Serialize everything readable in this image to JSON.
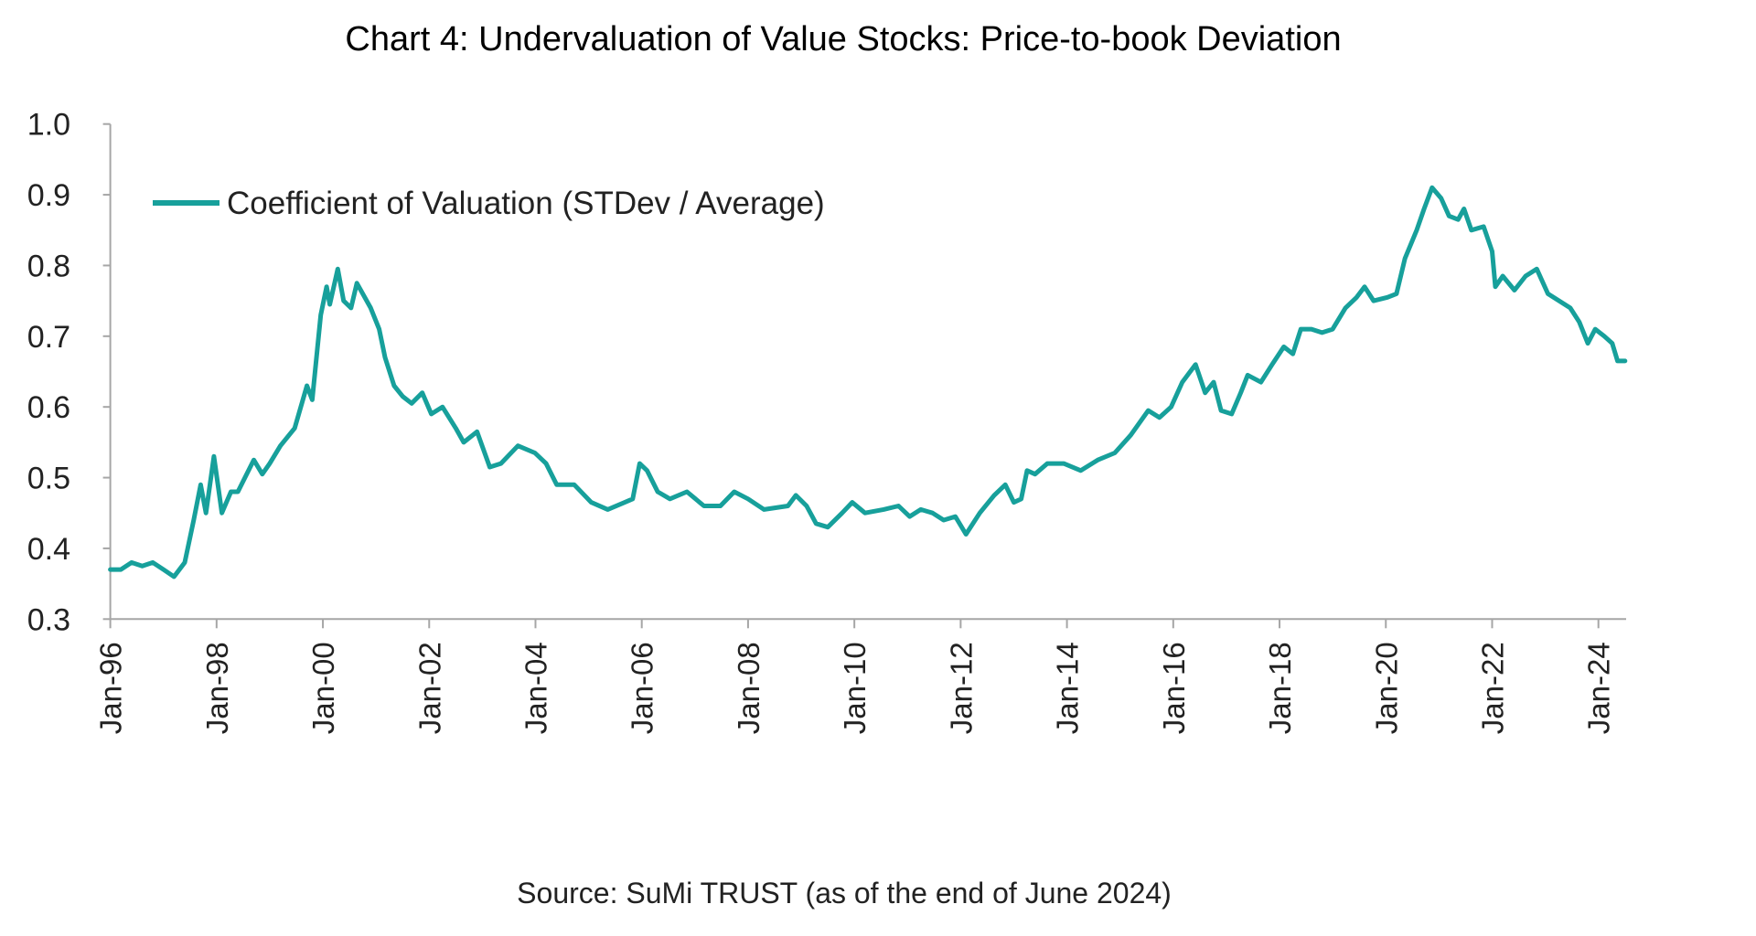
{
  "chart_data": {
    "type": "line",
    "title": "Chart 4: Undervaluation of Value Stocks: Price-to-book Deviation",
    "source": "Source: SuMi TRUST (as of the end of June 2024)",
    "xlabel": "",
    "ylabel": "",
    "ylim": [
      0.3,
      1.0
    ],
    "xlim": [
      1996.0,
      2024.5
    ],
    "y_ticks": [
      "0.3",
      "0.4",
      "0.5",
      "0.6",
      "0.7",
      "0.8",
      "0.9",
      "1.0"
    ],
    "x_ticks": [
      "Jan-96",
      "Jan-98",
      "Jan-00",
      "Jan-02",
      "Jan-04",
      "Jan-06",
      "Jan-08",
      "Jan-10",
      "Jan-12",
      "Jan-14",
      "Jan-16",
      "Jan-18",
      "Jan-20",
      "Jan-22",
      "Jan-24"
    ],
    "grid": false,
    "legend_position": "top-left",
    "series": [
      {
        "name": "Coefficient of Valuation (STDev / Average)",
        "color": "#17a09b",
        "x": [
          1996.0,
          1996.2,
          1996.4,
          1996.6,
          1996.8,
          1997.0,
          1997.2,
          1997.4,
          1997.57,
          1997.7,
          1997.8,
          1997.95,
          1998.1,
          1998.27,
          1998.4,
          1998.7,
          1998.86,
          1999.0,
          1999.2,
          1999.47,
          1999.7,
          1999.8,
          1999.96,
          2000.07,
          2000.13,
          2000.28,
          2000.39,
          2000.53,
          2000.64,
          2000.9,
          2001.06,
          2001.17,
          2001.34,
          2001.5,
          2001.67,
          2001.87,
          2002.04,
          2002.25,
          2002.5,
          2002.65,
          2002.9,
          2003.14,
          2003.35,
          2003.67,
          2003.99,
          2004.2,
          2004.4,
          2004.73,
          2005.05,
          2005.36,
          2005.68,
          2005.83,
          2005.96,
          2006.1,
          2006.3,
          2006.53,
          2006.85,
          2007.17,
          2007.48,
          2007.74,
          2008.0,
          2008.3,
          2008.75,
          2008.9,
          2009.1,
          2009.28,
          2009.5,
          2009.77,
          2009.96,
          2010.2,
          2010.55,
          2010.83,
          2011.04,
          2011.25,
          2011.47,
          2011.68,
          2011.9,
          2012.1,
          2012.36,
          2012.63,
          2012.84,
          2013.0,
          2013.14,
          2013.25,
          2013.4,
          2013.63,
          2013.94,
          2014.26,
          2014.58,
          2014.9,
          2015.2,
          2015.53,
          2015.74,
          2015.96,
          2016.17,
          2016.42,
          2016.6,
          2016.76,
          2016.9,
          2017.1,
          2017.27,
          2017.4,
          2017.65,
          2017.86,
          2018.08,
          2018.25,
          2018.4,
          2018.6,
          2018.8,
          2019.0,
          2019.24,
          2019.45,
          2019.6,
          2019.77,
          2020.03,
          2020.2,
          2020.36,
          2020.58,
          2020.72,
          2020.87,
          2021.04,
          2021.19,
          2021.36,
          2021.47,
          2021.61,
          2021.84,
          2022.0,
          2022.06,
          2022.2,
          2022.42,
          2022.63,
          2022.84,
          2023.05,
          2023.26,
          2023.47,
          2023.64,
          2023.8,
          2023.94,
          2024.11,
          2024.26,
          2024.36,
          2024.5
        ],
        "values": [
          0.37,
          0.37,
          0.38,
          0.375,
          0.38,
          0.37,
          0.36,
          0.38,
          0.44,
          0.49,
          0.45,
          0.53,
          0.45,
          0.48,
          0.48,
          0.525,
          0.505,
          0.52,
          0.545,
          0.57,
          0.63,
          0.61,
          0.73,
          0.77,
          0.745,
          0.795,
          0.75,
          0.74,
          0.775,
          0.74,
          0.71,
          0.67,
          0.63,
          0.615,
          0.605,
          0.62,
          0.59,
          0.6,
          0.57,
          0.55,
          0.565,
          0.515,
          0.52,
          0.545,
          0.535,
          0.52,
          0.49,
          0.49,
          0.465,
          0.455,
          0.465,
          0.47,
          0.52,
          0.51,
          0.48,
          0.47,
          0.48,
          0.46,
          0.46,
          0.48,
          0.47,
          0.455,
          0.46,
          0.475,
          0.46,
          0.435,
          0.43,
          0.45,
          0.465,
          0.45,
          0.455,
          0.46,
          0.445,
          0.455,
          0.45,
          0.44,
          0.445,
          0.42,
          0.45,
          0.475,
          0.49,
          0.465,
          0.47,
          0.51,
          0.505,
          0.52,
          0.52,
          0.51,
          0.525,
          0.535,
          0.56,
          0.595,
          0.585,
          0.6,
          0.635,
          0.66,
          0.62,
          0.635,
          0.595,
          0.59,
          0.62,
          0.645,
          0.635,
          0.66,
          0.685,
          0.675,
          0.71,
          0.71,
          0.705,
          0.71,
          0.74,
          0.755,
          0.77,
          0.75,
          0.755,
          0.76,
          0.81,
          0.85,
          0.88,
          0.91,
          0.895,
          0.87,
          0.865,
          0.88,
          0.85,
          0.855,
          0.82,
          0.77,
          0.785,
          0.765,
          0.785,
          0.795,
          0.76,
          0.75,
          0.74,
          0.72,
          0.69,
          0.71,
          0.7,
          0.69,
          0.665,
          0.665
        ]
      }
    ]
  }
}
